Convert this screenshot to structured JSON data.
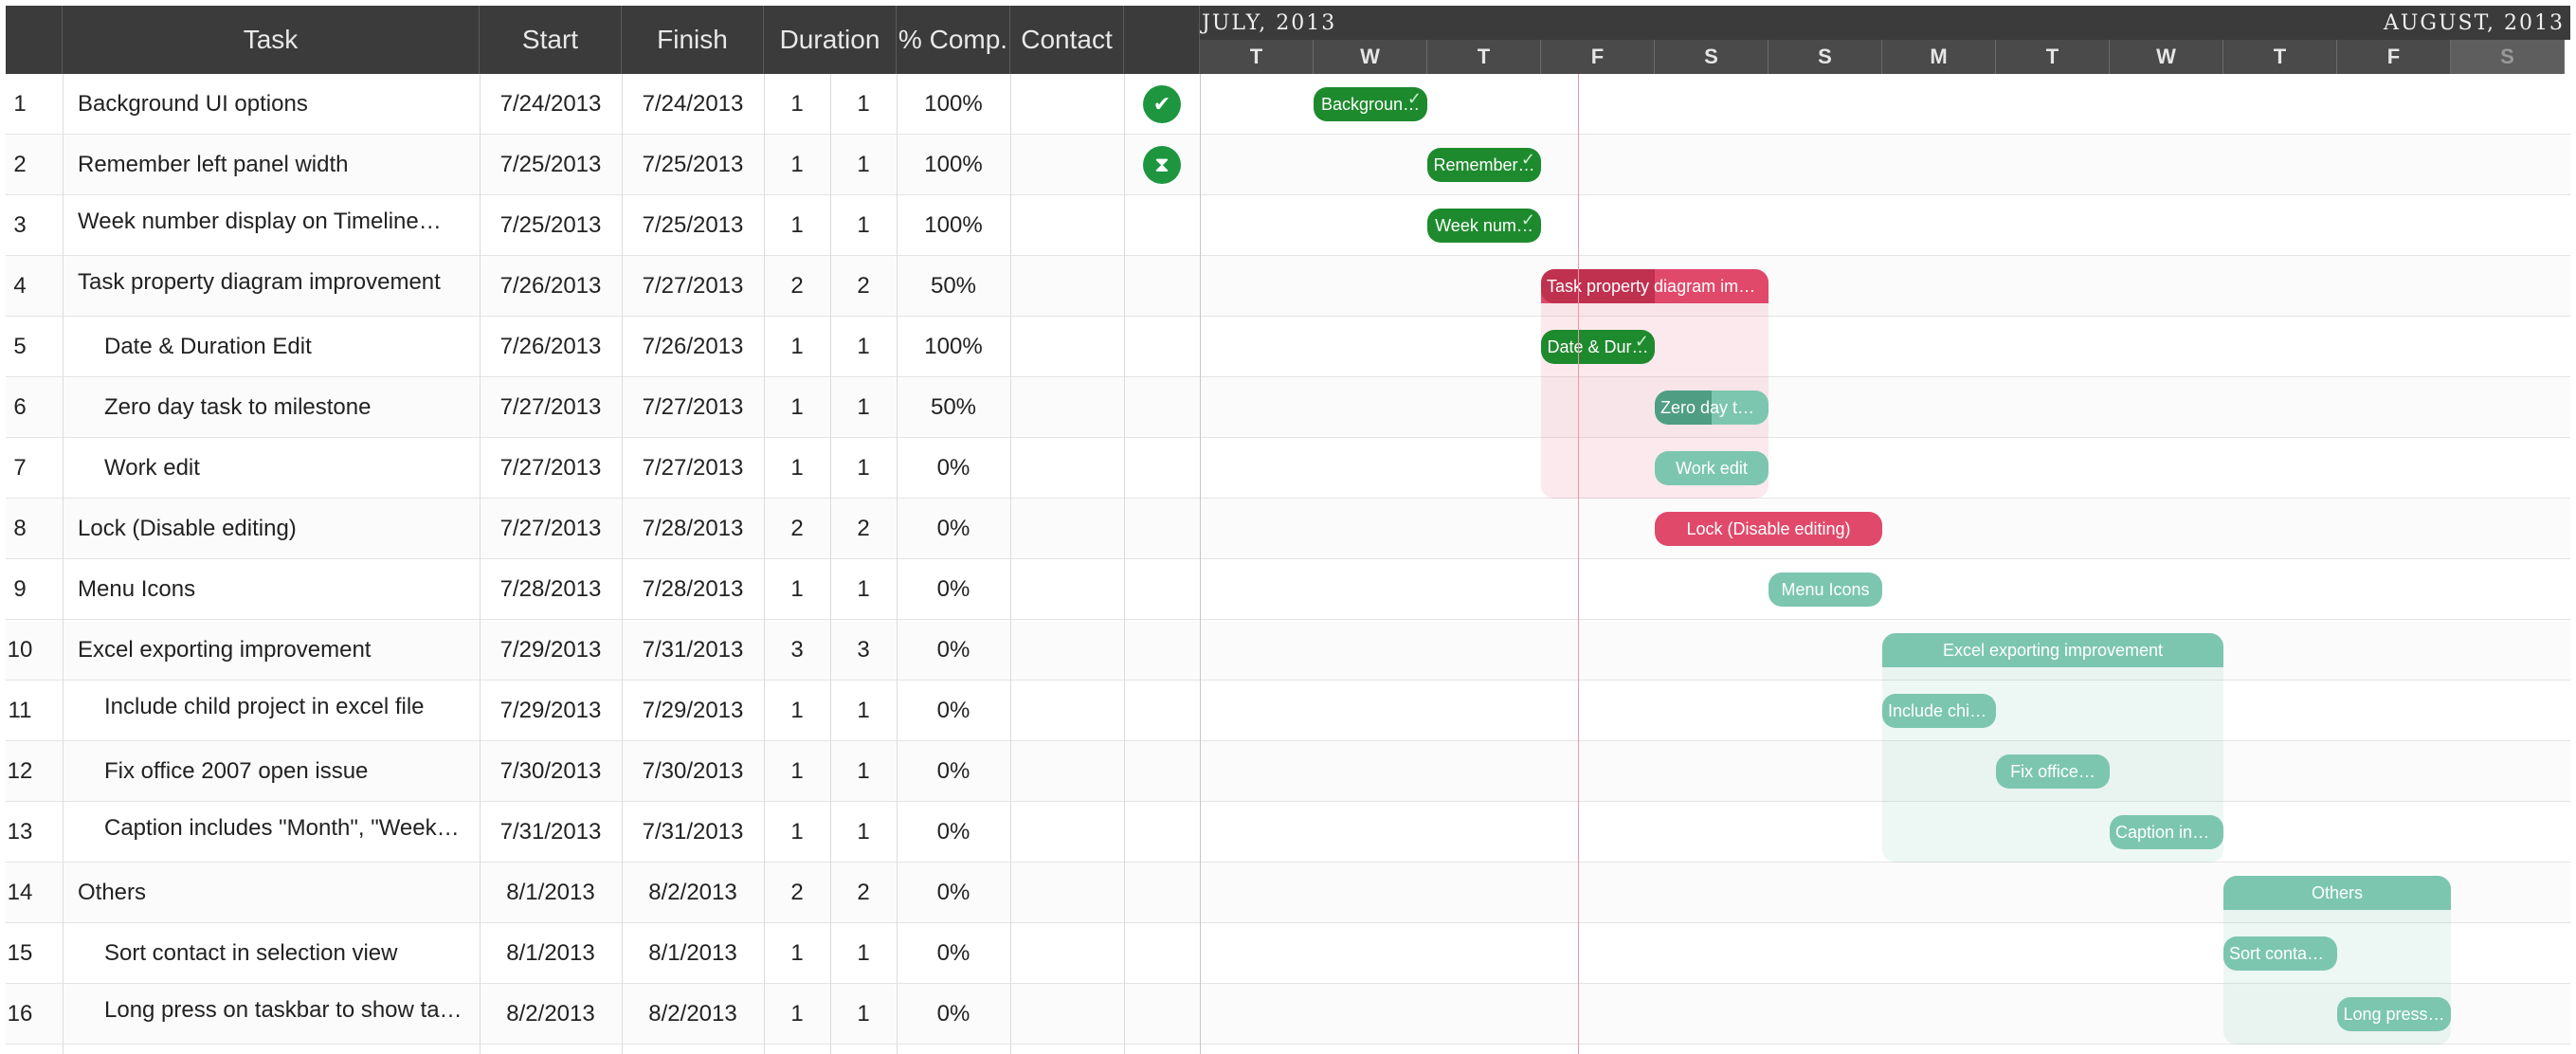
{
  "columns": {
    "task": "Task",
    "start": "Start",
    "finish": "Finish",
    "duration": "Duration",
    "pct": "% Comp.",
    "contact": "Contact"
  },
  "timeline": {
    "month1": "JULY, 2013",
    "month2": "AUGUST, 2013",
    "days": [
      "T",
      "W",
      "T",
      "F",
      "S",
      "S",
      "M",
      "T",
      "W",
      "T",
      "F",
      "S"
    ]
  },
  "rows": [
    {
      "id": "1",
      "task": "Background UI options",
      "start": "7/24/2013",
      "finish": "7/24/2013",
      "dur": "1",
      "dur2": "1",
      "pct": "100%",
      "indent": 0,
      "status": "check",
      "bar": "Backgroun…",
      "type": "done"
    },
    {
      "id": "2",
      "task": "Remember left panel width",
      "start": "7/25/2013",
      "finish": "7/25/2013",
      "dur": "1",
      "dur2": "1",
      "pct": "100%",
      "indent": 0,
      "status": "hourglass",
      "bar": "Remember…",
      "type": "done"
    },
    {
      "id": "3",
      "task": "Week number display on Timeline…",
      "start": "7/25/2013",
      "finish": "7/25/2013",
      "dur": "1",
      "dur2": "1",
      "pct": "100%",
      "indent": 0,
      "status": "",
      "bar": "Week num…",
      "type": "done"
    },
    {
      "id": "4",
      "task": "Task property diagram improvement",
      "start": "7/26/2013",
      "finish": "7/27/2013",
      "dur": "2",
      "dur2": "2",
      "pct": "50%",
      "indent": 0,
      "status": "",
      "bar": "Task property diagram im…",
      "type": "summary-red"
    },
    {
      "id": "5",
      "task": "Date & Duration Edit",
      "start": "7/26/2013",
      "finish": "7/26/2013",
      "dur": "1",
      "dur2": "1",
      "pct": "100%",
      "indent": 1,
      "status": "",
      "bar": "Date & Dur…",
      "type": "done"
    },
    {
      "id": "6",
      "task": "Zero day task to milestone",
      "start": "7/27/2013",
      "finish": "7/27/2013",
      "dur": "1",
      "dur2": "1",
      "pct": "50%",
      "indent": 1,
      "status": "",
      "bar": "Zero day ta…",
      "type": "half"
    },
    {
      "id": "7",
      "task": "Work edit",
      "start": "7/27/2013",
      "finish": "7/27/2013",
      "dur": "1",
      "dur2": "1",
      "pct": "0%",
      "indent": 1,
      "status": "",
      "bar": "Work edit",
      "type": "todo"
    },
    {
      "id": "8",
      "task": "Lock (Disable editing)",
      "start": "7/27/2013",
      "finish": "7/28/2013",
      "dur": "2",
      "dur2": "2",
      "pct": "0%",
      "indent": 0,
      "status": "",
      "bar": "Lock (Disable editing)",
      "type": "red"
    },
    {
      "id": "9",
      "task": "Menu Icons",
      "start": "7/28/2013",
      "finish": "7/28/2013",
      "dur": "1",
      "dur2": "1",
      "pct": "0%",
      "indent": 0,
      "status": "",
      "bar": "Menu Icons",
      "type": "todo"
    },
    {
      "id": "10",
      "task": "Excel exporting improvement",
      "start": "7/29/2013",
      "finish": "7/31/2013",
      "dur": "3",
      "dur2": "3",
      "pct": "0%",
      "indent": 0,
      "status": "",
      "bar": "Excel exporting improvement",
      "type": "summary-teal"
    },
    {
      "id": "11",
      "task": "Include child project in excel file",
      "start": "7/29/2013",
      "finish": "7/29/2013",
      "dur": "1",
      "dur2": "1",
      "pct": "0%",
      "indent": 1,
      "status": "",
      "bar": "Include chil…",
      "type": "todo"
    },
    {
      "id": "12",
      "task": "Fix office 2007 open issue",
      "start": "7/30/2013",
      "finish": "7/30/2013",
      "dur": "1",
      "dur2": "1",
      "pct": "0%",
      "indent": 1,
      "status": "",
      "bar": "Fix office…",
      "type": "todo"
    },
    {
      "id": "13",
      "task": "Caption includes \"Month\", \"Week…",
      "start": "7/31/2013",
      "finish": "7/31/2013",
      "dur": "1",
      "dur2": "1",
      "pct": "0%",
      "indent": 1,
      "status": "",
      "bar": "Caption inc…",
      "type": "todo"
    },
    {
      "id": "14",
      "task": "Others",
      "start": "8/1/2013",
      "finish": "8/2/2013",
      "dur": "2",
      "dur2": "2",
      "pct": "0%",
      "indent": 0,
      "status": "",
      "bar": "Others",
      "type": "summary-teal"
    },
    {
      "id": "15",
      "task": "Sort contact in selection view",
      "start": "8/1/2013",
      "finish": "8/1/2013",
      "dur": "1",
      "dur2": "1",
      "pct": "0%",
      "indent": 1,
      "status": "",
      "bar": "Sort contac…",
      "type": "todo"
    },
    {
      "id": "16",
      "task": "Long press on taskbar to show ta…",
      "start": "8/2/2013",
      "finish": "8/2/2013",
      "dur": "1",
      "dur2": "1",
      "pct": "0%",
      "indent": 1,
      "status": "",
      "bar": "Long press…",
      "type": "todo"
    }
  ],
  "colors": {
    "done": "#1e8a2e",
    "todo": "#7cc6b0",
    "red": "#e0496a",
    "dark_red": "#c0304f",
    "header": "#3b3b3b"
  }
}
